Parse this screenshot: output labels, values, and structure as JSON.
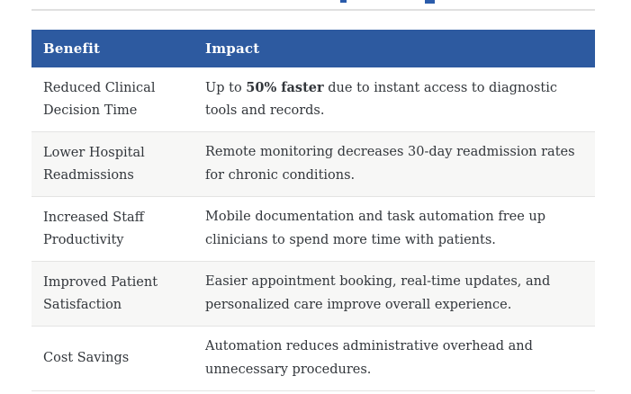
{
  "page": {
    "accent_color": "#2d5aa0",
    "alt_row_color": "#f7f7f6",
    "rule_color": "#e0e0e0",
    "text_color": "#32363b",
    "header_text_color": "#ffffff"
  },
  "table": {
    "headers": {
      "benefit": "Benefit",
      "impact": "Impact"
    },
    "rows": [
      {
        "benefit": "Reduced Clinical Decision Time",
        "impact_prefix": "Up to ",
        "impact_bold": "50% faster",
        "impact_suffix": " due to instant access to diagnostic tools and records."
      },
      {
        "benefit": "Lower Hospital Readmissions",
        "impact_prefix": "Remote monitoring decreases 30-day readmission rates for chronic conditions.",
        "impact_bold": "",
        "impact_suffix": ""
      },
      {
        "benefit": "Increased Staff Productivity",
        "impact_prefix": "Mobile documentation and task automation free up clinicians to spend more time with patients.",
        "impact_bold": "",
        "impact_suffix": ""
      },
      {
        "benefit": "Improved Patient Satisfaction",
        "impact_prefix": "Easier appointment booking, real-time updates, and personalized care improve overall experience.",
        "impact_bold": "",
        "impact_suffix": ""
      },
      {
        "benefit": "Cost Savings",
        "impact_prefix": "Automation reduces administrative overhead and unnecessary procedures.",
        "impact_bold": "",
        "impact_suffix": ""
      }
    ]
  }
}
